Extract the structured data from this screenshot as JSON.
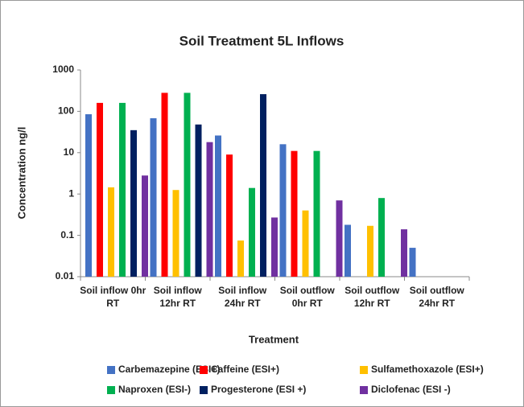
{
  "chart_data": {
    "type": "bar",
    "title": "Soil Treatment 5L Inflows",
    "x_label": "Treatment",
    "y_label": "Concentration ng/l",
    "categories": [
      "Soil inflow 0hr RT",
      "Soil inflow 12hr RT",
      "Soil inflow 24hr RT",
      "Soil outflow 0hr RT",
      "Soil outflow 12hr RT",
      "Soil outflow 24hr RT"
    ],
    "series": [
      {
        "name": "Carbemazepine (ESI+)",
        "color": "#4472c4",
        "values": [
          85,
          68,
          26,
          16,
          0.18,
          0.05
        ]
      },
      {
        "name": "Caffeine (ESI+)",
        "color": "#ff0000",
        "values": [
          160,
          280,
          9,
          11,
          null,
          null
        ]
      },
      {
        "name": "Sulfamethoxazole (ESI+)",
        "color": "#ffc000",
        "values": [
          1.45,
          1.25,
          0.075,
          0.4,
          0.17,
          null
        ]
      },
      {
        "name": "Naproxen (ESI-)",
        "color": "#00b050",
        "values": [
          160,
          280,
          1.4,
          11,
          0.8,
          null
        ]
      },
      {
        "name": "Progesterone (ESI +)",
        "color": "#002060",
        "values": [
          35,
          48,
          260,
          null,
          null,
          null
        ]
      },
      {
        "name": "Diclofenac (ESI -)",
        "color": "#7030a0",
        "values": [
          2.8,
          18,
          0.27,
          0.7,
          0.14,
          null
        ]
      }
    ],
    "ylim": [
      0.01,
      1000
    ],
    "yticks": [
      0.01,
      0.1,
      1,
      10,
      100,
      1000
    ],
    "log_y": true,
    "grid": false,
    "legend": "bottom"
  }
}
